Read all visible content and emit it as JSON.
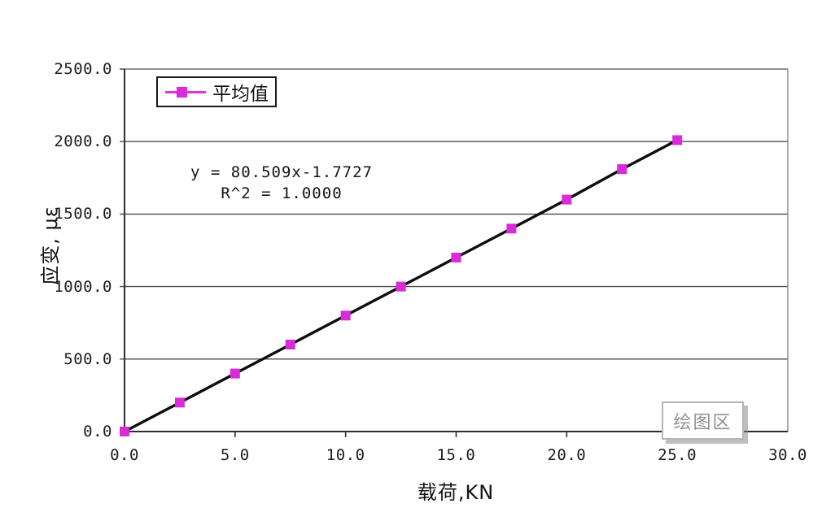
{
  "figure": {
    "xaxis_title": "载荷,KN",
    "yaxis_title": "应变, με",
    "legend_label": "平均值",
    "equation_line1": "y = 80.509x-1.7727",
    "equation_line2": "R^2 = 1.0000",
    "plot_area_tooltip": "绘图区"
  },
  "chart_data": {
    "type": "line",
    "title": "",
    "xlabel": "载荷,KN",
    "ylabel": "应变, με",
    "xlim": [
      0,
      30
    ],
    "ylim": [
      0,
      2500
    ],
    "xticks": [
      0,
      5,
      10,
      15,
      20,
      25,
      30
    ],
    "xtick_labels": [
      "0.0",
      "5.0",
      "10.0",
      "15.0",
      "20.0",
      "25.0",
      "30.0"
    ],
    "yticks": [
      0,
      500,
      1000,
      1500,
      2000,
      2500
    ],
    "ytick_labels": [
      "0.0",
      "500.0",
      "1000.0",
      "1500.0",
      "2000.0",
      "2500.0"
    ],
    "grid": "horizontal-only",
    "legend": {
      "position": "inside-top-left",
      "entries": [
        "平均值"
      ]
    },
    "x": [
      0,
      2.5,
      5,
      7.5,
      10,
      12.5,
      15,
      17.5,
      20,
      22.5,
      25
    ],
    "series": [
      {
        "name": "平均值",
        "values": [
          0,
          200,
          400,
          600,
          800,
          1000,
          1200,
          1400,
          1600,
          1810,
          2010
        ],
        "marker": "square",
        "marker_color": "#D92BD9",
        "line_color": "#0d0d0d"
      }
    ],
    "trendline": {
      "equation": "y = 80.509x-1.7727",
      "r_squared_label": "R^2 = 1.0000",
      "slope": 80.509,
      "intercept": -1.7727,
      "r_squared": 1.0
    },
    "annotations": [
      "绘图区"
    ]
  }
}
